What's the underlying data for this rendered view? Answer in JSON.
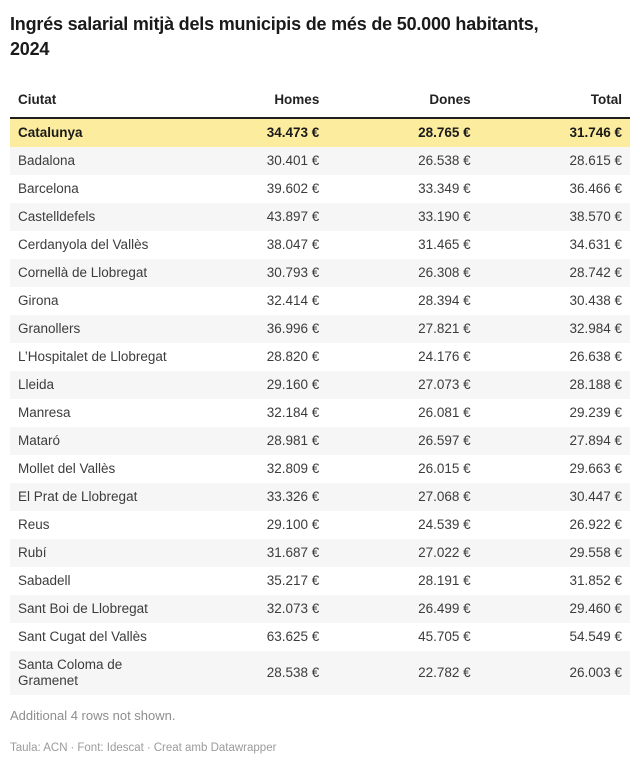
{
  "chart_data": {
    "type": "table",
    "title": "Ingrés salarial mitjà dels municipis de més de 50.000 habitants, 2024",
    "unit": "€",
    "columns": [
      "Ciutat",
      "Homes",
      "Dones",
      "Total"
    ],
    "column_alignments": [
      "left",
      "right",
      "right",
      "right"
    ],
    "highlight_row_color": "#fcec9e",
    "stripe_row_color": "#f6f6f6",
    "rows": [
      {
        "name": "Catalunya",
        "homes": "34.473 €",
        "dones": "28.765 €",
        "total": "31.746 €",
        "highlight": true
      },
      {
        "name": "Badalona",
        "homes": "30.401 €",
        "dones": "26.538 €",
        "total": "28.615 €"
      },
      {
        "name": "Barcelona",
        "homes": "39.602 €",
        "dones": "33.349 €",
        "total": "36.466 €"
      },
      {
        "name": "Castelldefels",
        "homes": "43.897 €",
        "dones": "33.190 €",
        "total": "38.570 €"
      },
      {
        "name": "Cerdanyola del Vallès",
        "homes": "38.047 €",
        "dones": "31.465 €",
        "total": "34.631 €"
      },
      {
        "name": "Cornellà de Llobregat",
        "homes": "30.793 €",
        "dones": "26.308 €",
        "total": "28.742 €"
      },
      {
        "name": "Girona",
        "homes": "32.414 €",
        "dones": "28.394 €",
        "total": "30.438 €"
      },
      {
        "name": "Granollers",
        "homes": "36.996 €",
        "dones": "27.821 €",
        "total": "32.984 €"
      },
      {
        "name": "L’Hospitalet de Llobregat",
        "homes": "28.820 €",
        "dones": "24.176 €",
        "total": "26.638 €"
      },
      {
        "name": "Lleida",
        "homes": "29.160 €",
        "dones": "27.073 €",
        "total": "28.188 €"
      },
      {
        "name": "Manresa",
        "homes": "32.184 €",
        "dones": "26.081 €",
        "total": "29.239 €"
      },
      {
        "name": "Mataró",
        "homes": "28.981 €",
        "dones": "26.597 €",
        "total": "27.894 €"
      },
      {
        "name": "Mollet del Vallès",
        "homes": "32.809 €",
        "dones": "26.015 €",
        "total": "29.663 €"
      },
      {
        "name": "El Prat de Llobregat",
        "homes": "33.326 €",
        "dones": "27.068 €",
        "total": "30.447 €"
      },
      {
        "name": "Reus",
        "homes": "29.100 €",
        "dones": "24.539 €",
        "total": "26.922 €"
      },
      {
        "name": "Rubí",
        "homes": "31.687 €",
        "dones": "27.022 €",
        "total": "29.558 €"
      },
      {
        "name": "Sabadell",
        "homes": "35.217 €",
        "dones": "28.191 €",
        "total": "31.852 €"
      },
      {
        "name": "Sant Boi de Llobregat",
        "homes": "32.073 €",
        "dones": "26.499 €",
        "total": "29.460 €"
      },
      {
        "name": "Sant Cugat del Vallès",
        "homes": "63.625 €",
        "dones": "45.705 €",
        "total": "54.549 €"
      },
      {
        "name": "Santa Coloma de Gramenet",
        "homes": "28.538 €",
        "dones": "22.782 €",
        "total": "26.003 €"
      }
    ]
  },
  "footer": {
    "note": "Additional 4 rows not shown.",
    "attribution": {
      "table": "Taula: ACN",
      "separator": "·",
      "source": "Font: Idescat",
      "credit": "Creat amb Datawrapper"
    }
  },
  "colors": {
    "title_text": "#1a1a1a",
    "body_text": "#3c3c3c",
    "header_rule": "#1f1f1f",
    "highlight_bg": "#fcec9e",
    "stripe_bg": "#f6f6f6",
    "muted_text": "#8e8e8e"
  }
}
